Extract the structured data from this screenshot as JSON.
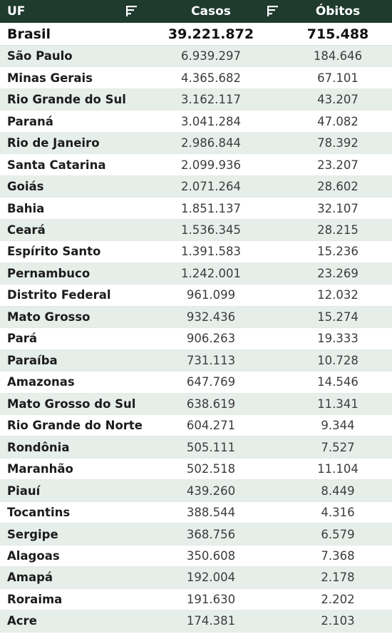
{
  "header": {
    "uf": "UF",
    "casos": "Casos",
    "obitos": "Óbitos"
  },
  "total": {
    "name": "Brasil",
    "casos": "39.221.872",
    "obitos": "715.488"
  },
  "rows": [
    {
      "name": "São Paulo",
      "casos": "6.939.297",
      "obitos": "184.646"
    },
    {
      "name": "Minas Gerais",
      "casos": "4.365.682",
      "obitos": "67.101"
    },
    {
      "name": "Rio Grande do Sul",
      "casos": "3.162.117",
      "obitos": "43.207"
    },
    {
      "name": "Paraná",
      "casos": "3.041.284",
      "obitos": "47.082"
    },
    {
      "name": "Rio de Janeiro",
      "casos": "2.986.844",
      "obitos": "78.392"
    },
    {
      "name": "Santa Catarina",
      "casos": "2.099.936",
      "obitos": "23.207"
    },
    {
      "name": "Goiás",
      "casos": "2.071.264",
      "obitos": "28.602"
    },
    {
      "name": "Bahia",
      "casos": "1.851.137",
      "obitos": "32.107"
    },
    {
      "name": "Ceará",
      "casos": "1.536.345",
      "obitos": "28.215"
    },
    {
      "name": "Espírito Santo",
      "casos": "1.391.583",
      "obitos": "15.236"
    },
    {
      "name": "Pernambuco",
      "casos": "1.242.001",
      "obitos": "23.269"
    },
    {
      "name": "Distrito Federal",
      "casos": "961.099",
      "obitos": "12.032"
    },
    {
      "name": "Mato Grosso",
      "casos": "932.436",
      "obitos": "15.274"
    },
    {
      "name": "Pará",
      "casos": "906.263",
      "obitos": "19.333"
    },
    {
      "name": "Paraíba",
      "casos": "731.113",
      "obitos": "10.728"
    },
    {
      "name": "Amazonas",
      "casos": "647.769",
      "obitos": "14.546"
    },
    {
      "name": "Mato Grosso do Sul",
      "casos": "638.619",
      "obitos": "11.341"
    },
    {
      "name": "Rio Grande do Norte",
      "casos": "604.271",
      "obitos": "9.344"
    },
    {
      "name": "Rondônia",
      "casos": "505.111",
      "obitos": "7.527"
    },
    {
      "name": "Maranhão",
      "casos": "502.518",
      "obitos": "11.104"
    },
    {
      "name": "Piauí",
      "casos": "439.260",
      "obitos": "8.449"
    },
    {
      "name": "Tocantins",
      "casos": "388.544",
      "obitos": "4.316"
    },
    {
      "name": "Sergipe",
      "casos": "368.756",
      "obitos": "6.579"
    },
    {
      "name": "Alagoas",
      "casos": "350.608",
      "obitos": "7.368"
    },
    {
      "name": "Amapá",
      "casos": "192.004",
      "obitos": "2.178"
    },
    {
      "name": "Roraima",
      "casos": "191.630",
      "obitos": "2.202"
    },
    {
      "name": "Acre",
      "casos": "174.381",
      "obitos": "2.103"
    }
  ],
  "icons": {
    "sort": "sort-filter-icon"
  },
  "colors": {
    "header_bg": "#1f3a2e",
    "alt_row": "#e6eeea"
  }
}
